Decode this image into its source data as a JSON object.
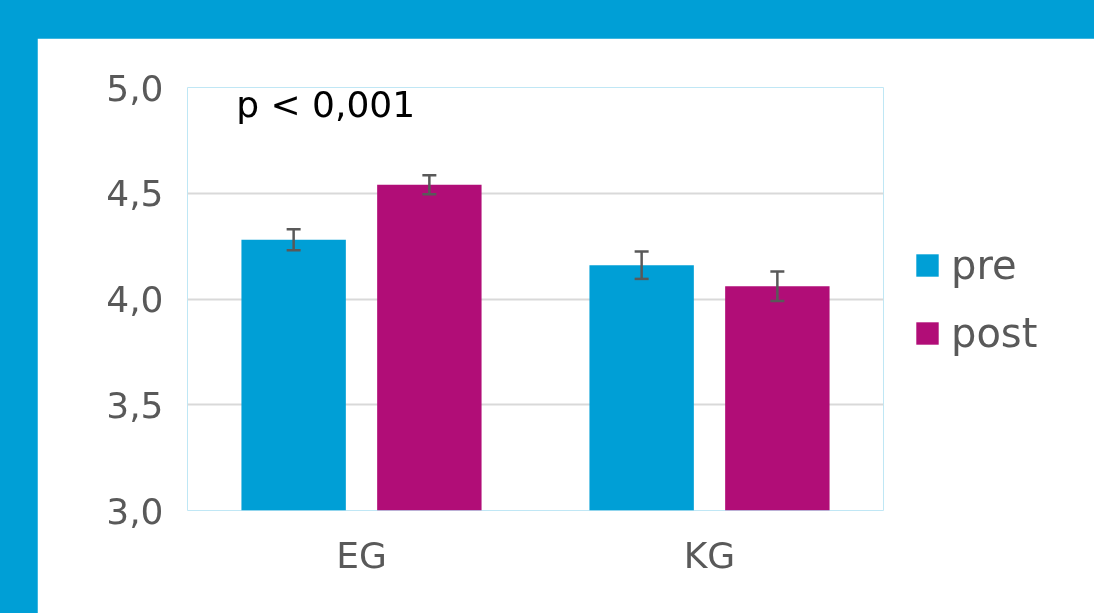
{
  "chart_data": {
    "type": "bar",
    "categories": [
      "EG",
      "KG"
    ],
    "series": [
      {
        "name": "pre",
        "color": "#009fd6",
        "values": [
          4.28,
          4.16
        ],
        "errors": [
          0.05,
          0.065
        ]
      },
      {
        "name": "post",
        "color": "#b10d77",
        "values": [
          4.54,
          4.06
        ],
        "errors": [
          0.045,
          0.07
        ]
      }
    ],
    "ylim": [
      3.0,
      5.0
    ],
    "yticks": [
      {
        "value": 3.0,
        "label": "3,0"
      },
      {
        "value": 3.5,
        "label": "3,5"
      },
      {
        "value": 4.0,
        "label": "4,0"
      },
      {
        "value": 4.5,
        "label": "4,5"
      },
      {
        "value": 5.0,
        "label": "5,0"
      }
    ],
    "grid": "y",
    "legend": "right",
    "annotations": [
      "p < 0,001"
    ]
  }
}
